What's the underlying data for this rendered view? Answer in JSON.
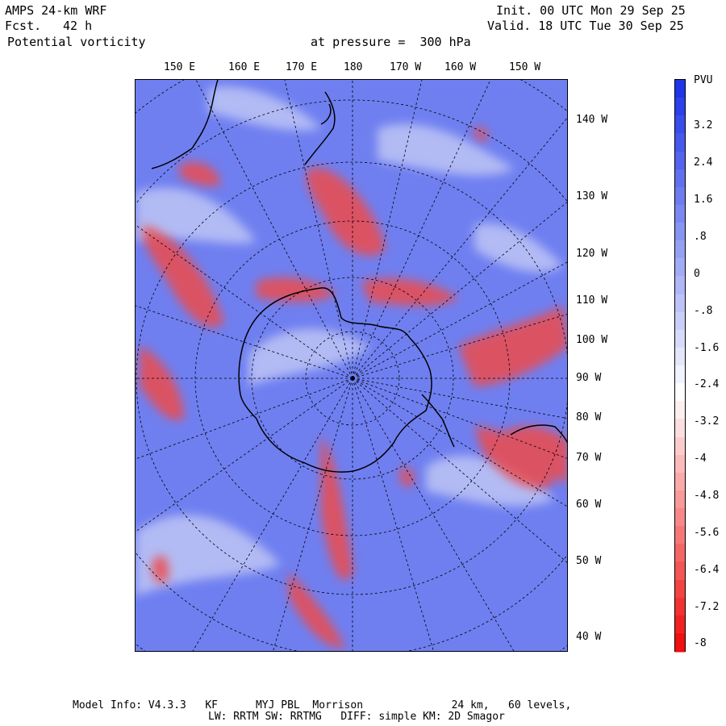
{
  "header": {
    "model": "AMPS 24-km WRF",
    "fcst_label": "Fcst.",
    "fcst_value": "42 h",
    "field": "Potential vorticity",
    "level": "at pressure =  300 hPa",
    "init": "Init. 00 UTC Mon 29 Sep 25",
    "valid": "Valid. 18 UTC Tue 30 Sep 25"
  },
  "longitude_labels_top": [
    "150 E",
    "160 E",
    "170 E",
    "180",
    "170 W",
    "160 W",
    "150 W"
  ],
  "longitude_labels_right": [
    "140 W",
    "130 W",
    "120 W",
    "110 W",
    "100 W",
    "90 W",
    "80 W",
    "70 W",
    "60 W",
    "50 W",
    "40 W"
  ],
  "colorbar": {
    "unit": "PVU",
    "tick_labels": [
      "3.2",
      "2.4",
      "1.6",
      ".8",
      "0",
      "-.8",
      "-1.6",
      "-2.4",
      "-3.2",
      "-4",
      "-4.8",
      "-5.6",
      "-6.4",
      "-7.2",
      "-8"
    ],
    "max_color": "#1f35e8",
    "mid_color": "#ffffff",
    "min_color": "#f01010"
  },
  "map": {
    "ocean_base_color": "#6f7ff0",
    "pv_positive_color": "#ee4b4b",
    "coast_color": "#000000"
  },
  "footer": {
    "line1": "Model Info: V4.3.3   KF      MYJ PBL  Morrison              24 km,   60 levels,",
    "line2": "LW: RRTM SW: RRTMG   DIFF: simple KM: 2D Smagor"
  }
}
